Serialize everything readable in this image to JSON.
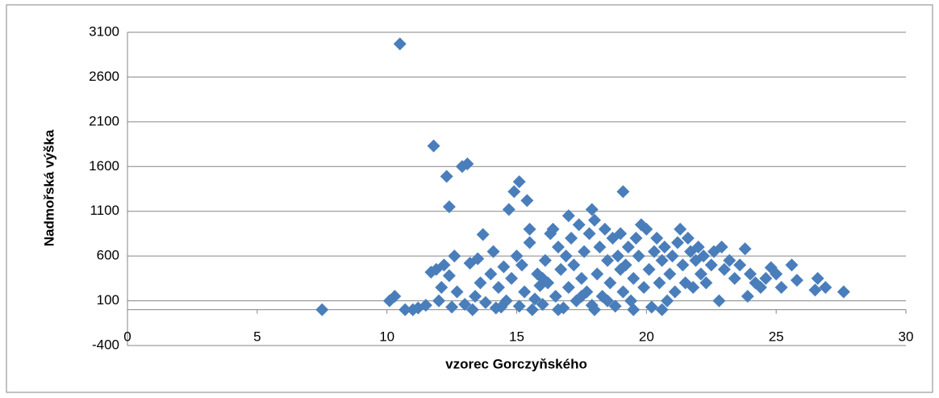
{
  "chart_data": {
    "type": "scatter",
    "x_label": "vzorec Gorczyňského",
    "y_label": "Nadmořská výška",
    "color": "#4a7ebb",
    "xlim": [
      0,
      30
    ],
    "xticks": [
      0,
      5,
      10,
      15,
      20,
      25,
      30
    ],
    "ylim": [
      -400,
      3100
    ],
    "yticks": [
      -400,
      100,
      600,
      1100,
      1600,
      2100,
      2600,
      3100
    ],
    "grid": true,
    "x": [
      7.5,
      10.1,
      10.3,
      10.5,
      10.7,
      11.0,
      11.2,
      11.5,
      11.7,
      11.8,
      11.9,
      12.0,
      12.1,
      12.2,
      12.3,
      12.4,
      12.4,
      12.6,
      12.7,
      12.9,
      13.0,
      13.1,
      13.2,
      13.4,
      13.5,
      13.6,
      13.7,
      13.8,
      14.0,
      14.1,
      14.2,
      14.3,
      14.5,
      14.6,
      14.7,
      14.8,
      14.9,
      15.0,
      15.1,
      15.1,
      15.2,
      15.3,
      15.4,
      15.5,
      15.5,
      15.7,
      15.8,
      15.9,
      16.0,
      16.1,
      16.2,
      16.3,
      16.4,
      16.5,
      16.6,
      16.7,
      16.8,
      16.9,
      17.0,
      17.0,
      17.1,
      17.2,
      17.3,
      17.4,
      17.5,
      17.6,
      17.7,
      17.8,
      17.9,
      17.9,
      18.0,
      18.1,
      18.2,
      18.3,
      18.4,
      18.5,
      18.6,
      18.7,
      18.8,
      18.9,
      19.0,
      19.1,
      19.1,
      19.2,
      19.3,
      19.4,
      19.5,
      19.6,
      19.7,
      19.8,
      19.9,
      20.0,
      20.1,
      20.2,
      20.3,
      20.4,
      20.5,
      20.6,
      20.7,
      20.8,
      20.9,
      21.0,
      21.1,
      21.2,
      21.3,
      21.4,
      21.5,
      21.6,
      21.7,
      21.8,
      21.9,
      22.0,
      22.1,
      22.2,
      22.3,
      22.5,
      22.6,
      22.8,
      22.9,
      23.0,
      23.2,
      23.4,
      23.6,
      23.8,
      23.9,
      24.0,
      24.2,
      24.4,
      24.6,
      24.8,
      25.0,
      25.2,
      25.6,
      25.8,
      26.5,
      26.6,
      26.9,
      27.6,
      13.3,
      14.4,
      15.6,
      16.6,
      18.0,
      19.5,
      20.6,
      12.5,
      16.0,
      17.5,
      18.5,
      19.0
    ],
    "values": [
      0,
      100,
      150,
      2970,
      0,
      0,
      20,
      50,
      420,
      1830,
      450,
      100,
      250,
      500,
      1490,
      1150,
      380,
      600,
      200,
      1600,
      60,
      1630,
      520,
      150,
      570,
      300,
      840,
      80,
      400,
      650,
      20,
      250,
      480,
      100,
      1120,
      350,
      1320,
      600,
      1430,
      40,
      500,
      200,
      1220,
      900,
      750,
      120,
      400,
      270,
      60,
      550,
      300,
      850,
      900,
      150,
      700,
      450,
      20,
      600,
      1050,
      250,
      800,
      500,
      100,
      950,
      350,
      650,
      200,
      850,
      1120,
      50,
      1000,
      400,
      700,
      150,
      900,
      550,
      300,
      800,
      40,
      600,
      850,
      1320,
      200,
      500,
      700,
      100,
      350,
      800,
      600,
      950,
      250,
      900,
      450,
      30,
      650,
      800,
      300,
      550,
      700,
      100,
      400,
      600,
      200,
      750,
      900,
      500,
      300,
      800,
      650,
      250,
      550,
      700,
      400,
      600,
      300,
      500,
      650,
      100,
      700,
      450,
      550,
      350,
      500,
      680,
      150,
      400,
      300,
      250,
      350,
      470,
      400,
      250,
      500,
      330,
      220,
      350,
      250,
      200,
      0,
      30,
      0,
      0,
      0,
      0,
      0,
      30,
      350,
      150,
      100,
      450
    ]
  }
}
